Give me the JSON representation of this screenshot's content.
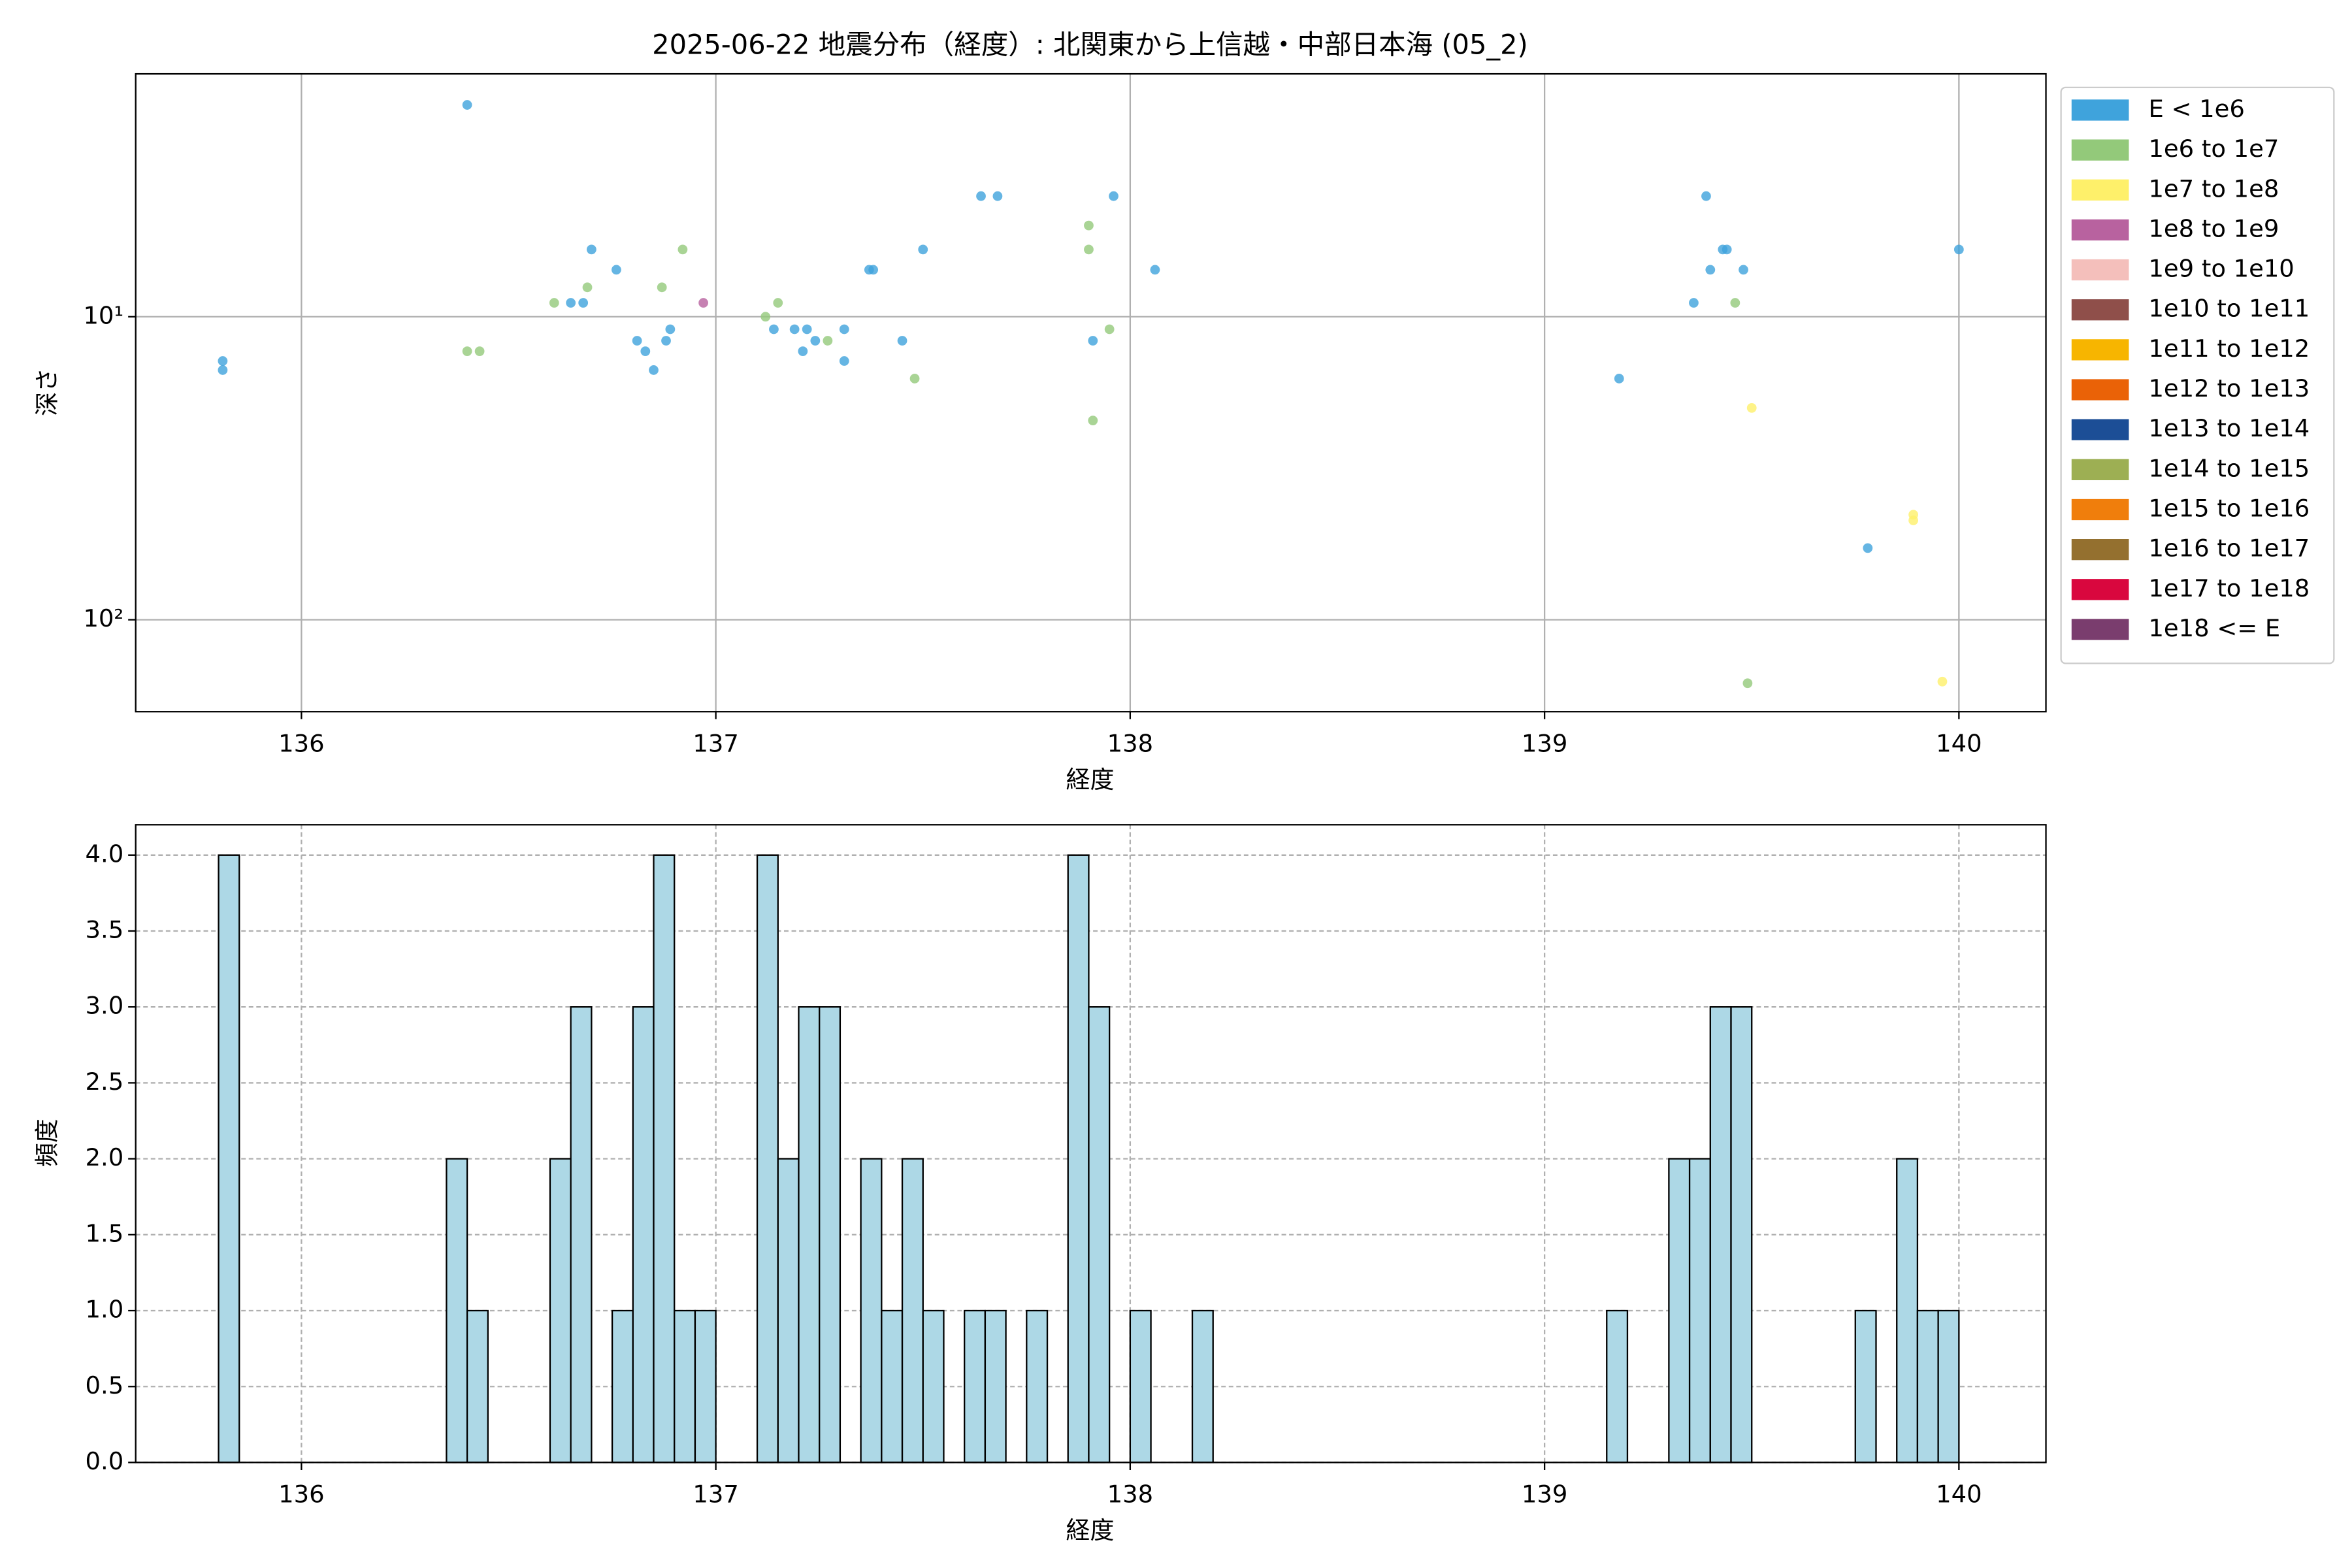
{
  "chart_data": [
    {
      "type": "scatter",
      "title": "2025-06-22 地震分布（経度）: 北関東から上信越・中部日本海 (05_2)",
      "xlabel": "経度",
      "ylabel": "深さ",
      "xlim": [
        135.6,
        140.21
      ],
      "xticks": [
        136,
        137,
        138,
        139,
        140
      ],
      "ylim": [
        1.58,
        201
      ],
      "yscale": "log",
      "yinverted": true,
      "yticks": [
        {
          "value": 10,
          "label": "10¹"
        },
        {
          "value": 100,
          "label": "10²"
        }
      ],
      "grid": true,
      "legend": "outside-upper-right",
      "series": [
        {
          "name": "E < 1e6",
          "color": "#3fa3dc",
          "x": [
            135.81,
            135.81,
            136.4,
            136.65,
            136.68,
            136.7,
            136.76,
            136.81,
            136.83,
            136.85,
            136.88,
            136.89,
            137.14,
            137.19,
            137.21,
            137.22,
            137.24,
            137.31,
            137.31,
            137.37,
            137.38,
            137.45,
            137.5,
            137.64,
            137.68,
            137.91,
            137.96,
            138.06,
            139.18,
            139.36,
            139.39,
            139.4,
            139.43,
            139.44,
            139.48,
            139.78,
            140.0
          ],
          "values": [
            14,
            15,
            2,
            9,
            9,
            6,
            7,
            12,
            13,
            15,
            12,
            11,
            11,
            11,
            13,
            11,
            12,
            14,
            11,
            7,
            7,
            12,
            6,
            4,
            4,
            12,
            4,
            7,
            16,
            9,
            4,
            7,
            6,
            6,
            7,
            58,
            6
          ]
        },
        {
          "name": "1e6 to 1e7",
          "color": "#93c97a",
          "x": [
            136.4,
            136.43,
            136.61,
            136.69,
            136.87,
            136.92,
            137.12,
            137.15,
            137.27,
            137.48,
            137.9,
            137.9,
            137.91,
            137.95,
            139.46,
            139.49
          ],
          "values": [
            13,
            13,
            9,
            8,
            8,
            6,
            10,
            9,
            12,
            16,
            5,
            6,
            22,
            11,
            9,
            162
          ]
        },
        {
          "name": "1e7 to 1e8",
          "color": "#fef06a",
          "x": [
            139.5,
            139.89,
            139.89,
            139.96
          ],
          "values": [
            20,
            47,
            45,
            160
          ]
        },
        {
          "name": "1e8 to 1e9",
          "color": "#b8629f",
          "x": [
            136.97
          ],
          "values": [
            9
          ]
        },
        {
          "name": "1e9 to 1e10",
          "color": "#f4bfbb",
          "x": [],
          "values": []
        },
        {
          "name": "1e10 to 1e11",
          "color": "#8f4f4a",
          "x": [],
          "values": []
        },
        {
          "name": "1e11 to 1e12",
          "color": "#f7b500",
          "x": [],
          "values": []
        },
        {
          "name": "1e12 to 1e13",
          "color": "#ea6207",
          "x": [],
          "values": []
        },
        {
          "name": "1e13 to 1e14",
          "color": "#1c4e96",
          "x": [],
          "values": []
        },
        {
          "name": "1e14 to 1e15",
          "color": "#9daf53",
          "x": [],
          "values": []
        },
        {
          "name": "1e15 to 1e16",
          "color": "#f07e0c",
          "x": [],
          "values": []
        },
        {
          "name": "1e16 to 1e17",
          "color": "#94702f",
          "x": [],
          "values": []
        },
        {
          "name": "1e17 to 1e18",
          "color": "#d9073e",
          "x": [],
          "values": []
        },
        {
          "name": "1e18 <= E",
          "color": "#7a3d6e",
          "x": [],
          "values": []
        }
      ]
    },
    {
      "type": "histogram",
      "xlabel": "経度",
      "ylabel": "頻度",
      "color": "#add8e6",
      "edgecolor": "#000000",
      "xlim": [
        135.6,
        140.21
      ],
      "xticks": [
        136,
        137,
        138,
        139,
        140
      ],
      "ylim": [
        0,
        4.2
      ],
      "yticks": [
        {
          "value": 0,
          "label": "0.0"
        },
        0.5,
        {
          "value": 1,
          "label": "1.0"
        },
        1.5,
        {
          "value": 2,
          "label": "2.0"
        },
        2.5,
        {
          "value": 3,
          "label": "3.0"
        },
        3.5,
        {
          "value": 4,
          "label": "4.0"
        }
      ],
      "grid": true,
      "bins": [
        135.8,
        135.85,
        135.9,
        135.95,
        136,
        136.05,
        136.1,
        136.15,
        136.2,
        136.25,
        136.3,
        136.35,
        136.4,
        136.45,
        136.5,
        136.55,
        136.6,
        136.65,
        136.7,
        136.75,
        136.8,
        136.85,
        136.9,
        136.95,
        137,
        137.05,
        137.1,
        137.15,
        137.2,
        137.25,
        137.3,
        137.35,
        137.4,
        137.45,
        137.5,
        137.55,
        137.6,
        137.65,
        137.7,
        137.75,
        137.8,
        137.85,
        137.9,
        137.95,
        138,
        138.05,
        138.1,
        138.15,
        138.2,
        138.25,
        138.3,
        138.35,
        138.4,
        138.45,
        138.5,
        138.55,
        138.6,
        138.65,
        138.7,
        138.75,
        138.8,
        138.85,
        138.9,
        138.95,
        139,
        139.05,
        139.1,
        139.15,
        139.2,
        139.25,
        139.3,
        139.35,
        139.4,
        139.45,
        139.5,
        139.55,
        139.6,
        139.65,
        139.7,
        139.75,
        139.8,
        139.85,
        139.9,
        139.95,
        140
      ],
      "values": [
        4,
        0,
        0,
        0,
        0,
        0,
        0,
        0,
        0,
        0,
        0,
        2,
        1,
        0,
        0,
        0,
        2,
        3,
        0,
        1,
        3,
        4,
        1,
        1,
        0,
        0,
        4,
        2,
        3,
        3,
        0,
        2,
        1,
        2,
        1,
        0,
        1,
        1,
        0,
        1,
        0,
        4,
        3,
        0,
        1,
        0,
        0,
        1,
        0,
        0,
        0,
        0,
        0,
        0,
        0,
        0,
        0,
        0,
        0,
        0,
        0,
        0,
        0,
        0,
        0,
        0,
        0,
        1,
        0,
        0,
        2,
        2,
        3,
        3,
        0,
        0,
        0,
        0,
        0,
        1,
        0,
        2,
        1,
        1
      ]
    }
  ]
}
